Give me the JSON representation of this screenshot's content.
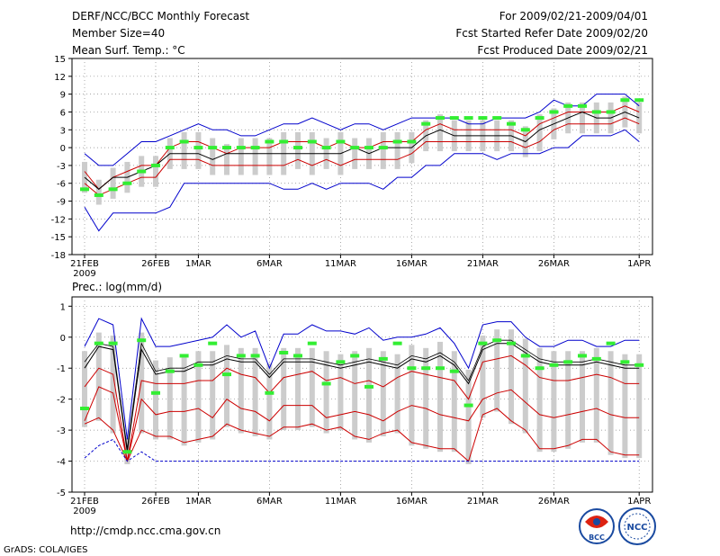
{
  "header": {
    "title": "DERF/NCC/BCC Monthly Forecast",
    "member_size": "Member Size=40",
    "variable": "Mean Surf. Temp.: °C",
    "period": "For 2009/02/21-2009/04/01",
    "started_refer": "Fcst Started Refer Date 2009/02/20",
    "produced": "Fcst Produced Date 2009/02/21"
  },
  "footer": {
    "url": "http://cmdp.ncc.cma.gov.cn",
    "grads": "GrADS: COLA/IGES",
    "logo_bcc": "BCC",
    "logo_ncc": "NCC"
  },
  "colors": {
    "max": "#0000cc",
    "min": "#0000cc",
    "mean": "#000000",
    "spread": "#cc0000",
    "obs": "#33ee33",
    "box": "#cccccc"
  },
  "chart_data": [
    {
      "type": "line",
      "title": "Mean Surf. Temp.: °C",
      "x_tick_labels": [
        "21FEB",
        "26FEB",
        "1MAR",
        "6MAR",
        "11MAR",
        "16MAR",
        "21MAR",
        "26MAR",
        "1APR"
      ],
      "x_tick_days": [
        0,
        5,
        8,
        13,
        18,
        23,
        28,
        33,
        39
      ],
      "year_label": "2009",
      "yticks": [
        15,
        12,
        9,
        6,
        3,
        0,
        -3,
        -6,
        -9,
        -12,
        -15,
        -18
      ],
      "ylim": [
        -18,
        15
      ],
      "days": 40,
      "series": [
        {
          "name": "max",
          "values": [
            -1,
            -3,
            -3,
            -1,
            1,
            1,
            2,
            3,
            4,
            3,
            3,
            2,
            2,
            3,
            4,
            4,
            5,
            4,
            3,
            4,
            4,
            3,
            4,
            5,
            5,
            5,
            5,
            4,
            4,
            5,
            5,
            5,
            6,
            8,
            7,
            7,
            9,
            9,
            9,
            7
          ]
        },
        {
          "name": "upper",
          "values": [
            -4,
            -7,
            -5,
            -4,
            -3,
            -3,
            0,
            1,
            1,
            0,
            -1,
            0,
            0,
            0,
            1,
            1,
            1,
            0,
            1,
            0,
            0,
            1,
            1,
            1,
            3,
            4,
            3,
            3,
            3,
            3,
            3,
            2,
            4,
            5,
            6,
            6,
            6,
            6,
            7,
            6
          ]
        },
        {
          "name": "mean",
          "values": [
            -5,
            -7,
            -5,
            -5,
            -4,
            -3,
            -1,
            -1,
            -1,
            -2,
            -1,
            -1,
            -1,
            -1,
            -1,
            -1,
            -1,
            -1,
            -1,
            0,
            -1,
            0,
            0,
            0,
            2,
            3,
            2,
            2,
            2,
            2,
            2,
            1,
            3,
            4,
            5,
            6,
            5,
            5,
            6,
            5
          ]
        },
        {
          "name": "lower",
          "values": [
            -6,
            -8,
            -7,
            -6,
            -5,
            -5,
            -2,
            -2,
            -2,
            -3,
            -3,
            -3,
            -3,
            -3,
            -3,
            -2,
            -3,
            -2,
            -3,
            -2,
            -2,
            -2,
            -2,
            -1,
            1,
            1,
            1,
            1,
            1,
            1,
            1,
            0,
            1,
            3,
            4,
            4,
            4,
            4,
            5,
            4
          ]
        },
        {
          "name": "min",
          "values": [
            -10,
            -14,
            -11,
            -11,
            -11,
            -11,
            -10,
            -6,
            -6,
            -6,
            -6,
            -6,
            -6,
            -6,
            -7,
            -7,
            -6,
            -7,
            -6,
            -6,
            -6,
            -7,
            -5,
            -5,
            -3,
            -3,
            -1,
            -1,
            -1,
            -2,
            -1,
            -1,
            -1,
            0,
            0,
            2,
            2,
            2,
            3,
            1
          ]
        },
        {
          "name": "observed",
          "values": [
            -7,
            -8,
            -7,
            -6,
            -4,
            -3,
            0,
            1,
            0,
            0,
            0,
            0,
            0,
            1,
            1,
            0,
            1,
            0,
            1,
            0,
            0,
            0,
            1,
            1,
            4,
            5,
            5,
            5,
            5,
            5,
            4,
            3,
            5,
            6,
            7,
            7,
            6,
            6,
            8,
            8
          ]
        }
      ]
    },
    {
      "type": "line",
      "title": "Prec.: log(mm/d)",
      "x_tick_labels": [
        "21FEB",
        "26FEB",
        "1MAR",
        "6MAR",
        "11MAR",
        "16MAR",
        "21MAR",
        "26MAR",
        "1APR"
      ],
      "x_tick_days": [
        0,
        5,
        8,
        13,
        18,
        23,
        28,
        33,
        39
      ],
      "year_label": "2009",
      "yticks": [
        1,
        0,
        -1,
        -2,
        -3,
        -4,
        -5
      ],
      "ylim": [
        -5,
        1.3
      ],
      "days": 40,
      "series": [
        {
          "name": "max",
          "values": [
            -0.3,
            0.6,
            0.4,
            -3.3,
            0.6,
            -0.3,
            -0.3,
            -0.2,
            -0.1,
            0.0,
            0.4,
            0.0,
            0.2,
            -1.0,
            0.1,
            0.1,
            0.4,
            0.2,
            0.2,
            0.1,
            0.3,
            -0.1,
            0.0,
            0.0,
            0.1,
            0.3,
            -0.2,
            -1.0,
            0.4,
            0.5,
            0.5,
            0.0,
            -0.3,
            -0.3,
            -0.1,
            -0.1,
            -0.3,
            -0.3,
            -0.1,
            -0.1
          ]
        },
        {
          "name": "upper",
          "values": [
            -0.8,
            -0.2,
            -0.3,
            -3.6,
            -0.2,
            -1.1,
            -1.0,
            -1.0,
            -0.8,
            -0.8,
            -0.6,
            -0.7,
            -0.7,
            -1.2,
            -0.7,
            -0.7,
            -0.7,
            -0.8,
            -0.9,
            -0.8,
            -0.7,
            -0.8,
            -0.9,
            -0.6,
            -0.7,
            -0.5,
            -0.8,
            -1.4,
            -0.3,
            -0.1,
            -0.1,
            -0.4,
            -0.7,
            -0.8,
            -0.8,
            -0.8,
            -0.7,
            -0.8,
            -0.9,
            -0.9
          ]
        },
        {
          "name": "mean",
          "values": [
            -1.0,
            -0.3,
            -0.4,
            -3.7,
            -0.4,
            -1.2,
            -1.1,
            -1.1,
            -0.9,
            -0.9,
            -0.7,
            -0.8,
            -0.8,
            -1.3,
            -0.8,
            -0.8,
            -0.8,
            -0.9,
            -1.0,
            -0.9,
            -0.8,
            -0.9,
            -1.0,
            -0.7,
            -0.8,
            -0.6,
            -0.9,
            -1.5,
            -0.4,
            -0.2,
            -0.2,
            -0.5,
            -0.8,
            -0.9,
            -0.9,
            -0.9,
            -0.8,
            -0.9,
            -1.0,
            -1.0
          ]
        },
        {
          "name": "spread_hi",
          "values": [
            -1.6,
            -1.0,
            -1.2,
            -4.0,
            -1.4,
            -1.5,
            -1.5,
            -1.5,
            -1.4,
            -1.4,
            -1.0,
            -1.2,
            -1.3,
            -1.8,
            -1.3,
            -1.2,
            -1.1,
            -1.4,
            -1.3,
            -1.5,
            -1.4,
            -1.6,
            -1.3,
            -1.1,
            -1.2,
            -1.3,
            -1.4,
            -2.0,
            -0.8,
            -0.7,
            -0.6,
            -0.9,
            -1.3,
            -1.4,
            -1.4,
            -1.3,
            -1.2,
            -1.3,
            -1.5,
            -1.5
          ]
        },
        {
          "name": "spread_lo",
          "values": [
            -2.7,
            -1.6,
            -1.8,
            -4.0,
            -2.0,
            -2.5,
            -2.4,
            -2.4,
            -2.3,
            -2.6,
            -2.0,
            -2.3,
            -2.4,
            -2.7,
            -2.2,
            -2.2,
            -2.2,
            -2.6,
            -2.5,
            -2.4,
            -2.5,
            -2.7,
            -2.4,
            -2.2,
            -2.3,
            -2.5,
            -2.6,
            -2.7,
            -2.0,
            -1.8,
            -1.7,
            -2.1,
            -2.5,
            -2.6,
            -2.5,
            -2.4,
            -2.3,
            -2.5,
            -2.6,
            -2.6
          ]
        },
        {
          "name": "lowest",
          "values": [
            -2.8,
            -2.6,
            -3.0,
            -4.0,
            -3.0,
            -3.2,
            -3.2,
            -3.4,
            -3.3,
            -3.2,
            -2.8,
            -3.0,
            -3.1,
            -3.2,
            -2.9,
            -2.9,
            -2.8,
            -3.0,
            -2.9,
            -3.2,
            -3.3,
            -3.1,
            -3.0,
            -3.4,
            -3.5,
            -3.6,
            -3.6,
            -4.0,
            -2.5,
            -2.3,
            -2.7,
            -3.0,
            -3.6,
            -3.6,
            -3.5,
            -3.3,
            -3.3,
            -3.7,
            -3.8,
            -3.8
          ]
        },
        {
          "name": "min",
          "values": [
            -3.9,
            -3.5,
            -3.3,
            -4.0,
            -3.7,
            -4.0,
            -4.0,
            -4.0,
            -4.0,
            -4.0,
            -4.0,
            -4.0,
            -4.0,
            -4.0,
            -4.0,
            -4.0,
            -4.0,
            -4.0,
            -4.0,
            -4.0,
            -4.0,
            -4.0,
            -4.0,
            -4.0,
            -4.0,
            -4.0,
            -4.0,
            -4.0,
            -4.0,
            -4.0,
            -4.0,
            -4.0,
            -4.0,
            -4.0,
            -4.0,
            -4.0,
            -4.0,
            -4.0,
            -4.0,
            -4.0
          ]
        },
        {
          "name": "observed",
          "values": [
            -2.3,
            -0.2,
            -0.2,
            -3.7,
            -0.1,
            -1.8,
            -1.1,
            -0.6,
            -0.9,
            -0.2,
            -1.2,
            -0.6,
            -0.6,
            -1.8,
            -0.5,
            -0.6,
            -0.2,
            -1.5,
            -0.8,
            -0.6,
            -1.6,
            -0.7,
            -0.2,
            -1.0,
            -1.0,
            -1.0,
            -1.1,
            -2.2,
            -0.2,
            -0.1,
            -0.2,
            -0.6,
            -1.0,
            -0.9,
            -0.8,
            -0.6,
            -0.7,
            -0.2,
            -0.8,
            -0.9
          ]
        }
      ]
    }
  ]
}
